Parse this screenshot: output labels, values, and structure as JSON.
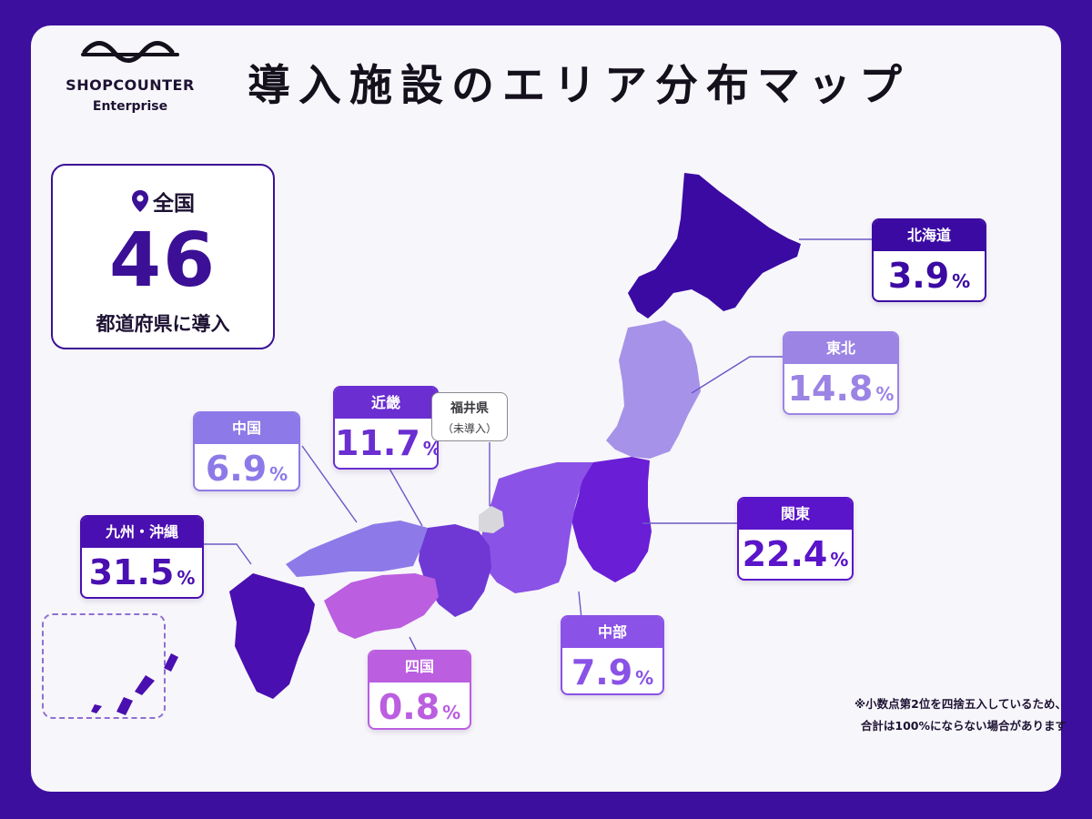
{
  "brand": {
    "name": "SHOPCOUNTER",
    "sub": "Enterprise"
  },
  "title": "導入施設のエリア分布マップ",
  "summary": {
    "label": "全国",
    "value": "46",
    "caption": "都道府県に導入"
  },
  "regions": [
    {
      "key": "hokkaido",
      "name": "北海道",
      "value": "3.9",
      "unit": "%",
      "color": "#3b0aa3"
    },
    {
      "key": "tohoku",
      "name": "東北",
      "value": "14.8",
      "unit": "%",
      "color": "#9b84e4"
    },
    {
      "key": "kanto",
      "name": "関東",
      "value": "22.4",
      "unit": "%",
      "color": "#5a14c9"
    },
    {
      "key": "chubu",
      "name": "中部",
      "value": "7.9",
      "unit": "%",
      "color": "#8a52e6"
    },
    {
      "key": "kinki",
      "name": "近畿",
      "value": "11.7",
      "unit": "%",
      "color": "#6a2ed1"
    },
    {
      "key": "chugoku",
      "name": "中国",
      "value": "6.9",
      "unit": "%",
      "color": "#8d7ae8"
    },
    {
      "key": "shikoku",
      "name": "四国",
      "value": "0.8",
      "unit": "%",
      "color": "#bb5ee0"
    },
    {
      "key": "kyushu",
      "name": "九州・沖縄",
      "value": "31.5",
      "unit": "%",
      "color": "#4a0fb0"
    }
  ],
  "fukui": {
    "name": "福井県",
    "status": "（未導入）",
    "color": "#d8d8dc"
  },
  "note": {
    "line1": "※小数点第2位を四捨五入しているため、",
    "line2": "合計は100%にならない場合があります"
  },
  "icons": {
    "location": "map-pin-icon",
    "logo": "wave-logo-icon"
  }
}
